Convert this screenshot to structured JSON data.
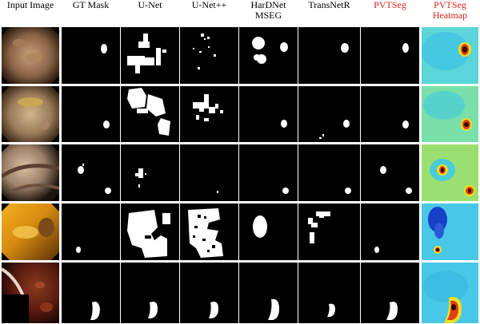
{
  "columns": [
    {
      "lines": [
        "Input Image"
      ],
      "color": "#000000"
    },
    {
      "lines": [
        "GT Mask"
      ],
      "color": "#000000"
    },
    {
      "lines": [
        "U-Net"
      ],
      "color": "#000000"
    },
    {
      "lines": [
        "U-Net++"
      ],
      "color": "#000000"
    },
    {
      "lines": [
        "HarDNet",
        "MSEG"
      ],
      "color": "#000000"
    },
    {
      "lines": [
        "TransNetR"
      ],
      "color": "#000000"
    },
    {
      "lines": [
        "PVTSeg"
      ],
      "color": "#e02020"
    },
    {
      "lines": [
        "PVTSeg",
        "Heatmap"
      ],
      "color": "#e02020"
    }
  ],
  "colors": {
    "mask_background": "#000000",
    "mask_foreground": "#ffffff",
    "heatmap_base": "#1ec8e8",
    "heatmap_hot": "#d01010"
  },
  "row_count": 5
}
